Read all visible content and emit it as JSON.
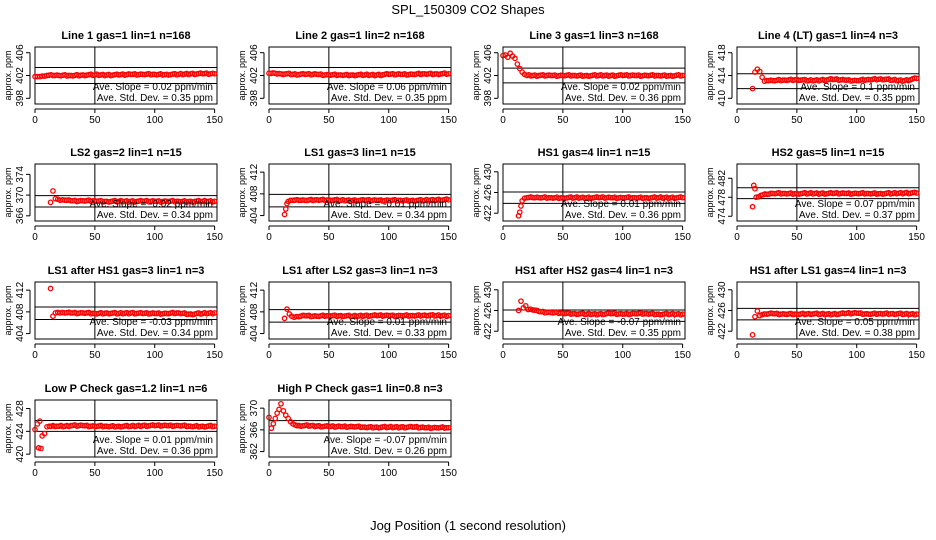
{
  "figure": {
    "title": "SPL_150309  CO2 Shapes",
    "xlabel": "Jog Position (1 second resolution)",
    "point_color": "#ff0000",
    "point_marker": "open circle",
    "line_color": "#000000"
  },
  "chart_data": [
    {
      "type": "scatter",
      "title": "Line 1 gas=1 lin=1 n=168",
      "ylabel": "approx. ppm",
      "xlim": [
        0,
        152
      ],
      "xticks": [
        0,
        50,
        100,
        150
      ],
      "ylim": [
        397,
        407
      ],
      "yticks": [
        398,
        402,
        406
      ],
      "hlines": [
        403.4,
        400.6
      ],
      "vline": 50,
      "x": [
        0,
        2,
        4,
        6,
        8,
        10,
        15,
        20,
        30,
        40,
        50,
        60,
        70,
        80,
        90,
        100,
        110,
        120,
        130,
        140,
        150
      ],
      "y": [
        401.8,
        401.8,
        401.8,
        401.9,
        401.9,
        402.0,
        402.0,
        402.0,
        402.0,
        402.1,
        402.1,
        402.1,
        402.1,
        402.2,
        402.2,
        402.2,
        402.2,
        402.2,
        402.3,
        402.3,
        402.3
      ],
      "notes": [
        "Ave. Slope =  0.02  ppm/min",
        "Ave. Std. Dev. =  0.35  ppm"
      ]
    },
    {
      "type": "scatter",
      "title": "Line 2 gas=1 lin=2 n=168",
      "ylabel": "approx. ppm",
      "xlim": [
        0,
        152
      ],
      "xticks": [
        0,
        50,
        100,
        150
      ],
      "ylim": [
        397,
        407
      ],
      "yticks": [
        398,
        402,
        406
      ],
      "hlines": [
        403.4,
        400.6
      ],
      "vline": 50,
      "x": [
        0,
        5,
        10,
        15,
        20,
        30,
        40,
        50,
        60,
        70,
        80,
        90,
        100,
        110,
        120,
        130,
        140,
        150
      ],
      "y": [
        402.4,
        402.4,
        402.3,
        402.3,
        402.2,
        402.2,
        402.2,
        402.1,
        402.1,
        402.1,
        402.1,
        402.1,
        402.2,
        402.2,
        402.2,
        402.3,
        402.3,
        402.3
      ],
      "notes": [
        "Ave. Slope =  0.06  ppm/min",
        "Ave. Std. Dev. =  0.35  ppm"
      ]
    },
    {
      "type": "scatter",
      "title": "Line 3 gas=1 lin=3 n=168",
      "ylabel": "approx. ppm",
      "xlim": [
        0,
        152
      ],
      "xticks": [
        0,
        50,
        100,
        150
      ],
      "ylim": [
        397,
        407
      ],
      "yticks": [
        398,
        402,
        406
      ],
      "hlines": [
        403.3,
        400.7
      ],
      "vline": 50,
      "x": [
        0,
        2,
        4,
        6,
        8,
        10,
        12,
        14,
        16,
        18,
        20,
        25,
        30,
        40,
        50,
        60,
        70,
        80,
        90,
        100,
        110,
        120,
        130,
        140,
        150
      ],
      "y": [
        405.5,
        405.6,
        405.2,
        405.9,
        405.4,
        405.0,
        404.0,
        403.2,
        402.6,
        402.2,
        402.0,
        402.0,
        402.0,
        402.0,
        402.0,
        402.0,
        402.0,
        402.0,
        402.0,
        402.0,
        402.0,
        402.0,
        402.0,
        402.0,
        402.0
      ],
      "notes": [
        "Ave. Slope =  0.02  ppm/min",
        "Ave. Std. Dev. =  0.36  ppm"
      ]
    },
    {
      "type": "scatter",
      "title": "Line 4 (LT) gas=1 lin=4 n=3",
      "ylabel": "approx. ppm",
      "xlim": [
        0,
        152
      ],
      "xticks": [
        0,
        50,
        100,
        150
      ],
      "ylim": [
        409,
        419
      ],
      "yticks": [
        410,
        414,
        418
      ],
      "hlines": [
        414.3,
        411.7
      ],
      "vline": 50,
      "x": [
        13,
        15,
        17,
        19,
        21,
        23,
        25,
        30,
        40,
        50,
        60,
        70,
        80,
        90,
        100,
        110,
        120,
        130,
        140,
        150
      ],
      "y": [
        411.7,
        414.6,
        415.1,
        414.7,
        413.7,
        413.0,
        413.1,
        413.1,
        413.2,
        413.3,
        413.1,
        413.2,
        413.3,
        413.2,
        413.1,
        413.3,
        413.4,
        413.2,
        413.1,
        413.5
      ],
      "notes": [
        "Ave. Slope =  0.1  ppm/min",
        "Ave. Std. Dev. =  0.35  ppm"
      ]
    },
    {
      "type": "scatter",
      "title": "LS2 gas=2 lin=1 n=15",
      "ylabel": "approx. ppm",
      "xlim": [
        0,
        152
      ],
      "xticks": [
        0,
        50,
        100,
        150
      ],
      "ylim": [
        365,
        376
      ],
      "yticks": [
        366,
        370,
        374
      ],
      "hlines": [
        369.9,
        367.7
      ],
      "vline": 50,
      "x": [
        13,
        15,
        17,
        19,
        21,
        25,
        30,
        40,
        50,
        60,
        70,
        80,
        90,
        100,
        110,
        120,
        130,
        140,
        150
      ],
      "y": [
        368.6,
        370.8,
        369.3,
        369.2,
        369.0,
        369.0,
        368.9,
        368.9,
        368.9,
        368.8,
        368.8,
        368.8,
        368.8,
        368.8,
        368.8,
        368.8,
        368.8,
        368.8,
        368.8
      ],
      "notes": [
        "Ave. Slope = -0.02  ppm/min",
        "Ave. Std. Dev. =  0.34  ppm"
      ]
    },
    {
      "type": "scatter",
      "title": "LS1 gas=3 lin=1 n=15",
      "ylabel": "approx. ppm",
      "xlim": [
        0,
        152
      ],
      "xticks": [
        0,
        50,
        100,
        150
      ],
      "ylim": [
        403,
        413.5
      ],
      "yticks": [
        404,
        408,
        412
      ],
      "hlines": [
        407.9,
        405.6
      ],
      "vline": 50,
      "x": [
        13,
        14,
        15,
        16,
        18,
        20,
        25,
        30,
        40,
        50,
        60,
        70,
        80,
        90,
        100,
        110,
        120,
        130,
        140,
        150
      ],
      "y": [
        404.2,
        405.2,
        406.2,
        406.6,
        406.8,
        406.8,
        406.8,
        406.8,
        406.9,
        406.9,
        406.8,
        406.8,
        406.8,
        406.8,
        406.8,
        406.8,
        406.8,
        406.8,
        406.9,
        406.9
      ],
      "notes": [
        "Ave. Slope = -0.01  ppm/min",
        "Ave. Std. Dev. =  0.34  ppm"
      ]
    },
    {
      "type": "scatter",
      "title": "HS1 gas=4 lin=1 n=15",
      "ylabel": "approx. ppm",
      "xlim": [
        0,
        152
      ],
      "xticks": [
        0,
        50,
        100,
        150
      ],
      "ylim": [
        420.5,
        431.5
      ],
      "yticks": [
        422,
        426,
        430
      ],
      "hlines": [
        426.1,
        423.9
      ],
      "vline": 50,
      "x": [
        13,
        14,
        15,
        16,
        18,
        20,
        25,
        30,
        40,
        50,
        60,
        70,
        80,
        90,
        100,
        110,
        120,
        130,
        140,
        150
      ],
      "y": [
        421.5,
        422.2,
        423.4,
        424.4,
        424.9,
        425.0,
        425.0,
        425.0,
        425.0,
        425.0,
        425.0,
        425.0,
        425.0,
        425.0,
        425.0,
        425.0,
        425.0,
        425.0,
        425.0,
        425.0
      ],
      "notes": [
        "Ave. Slope =  0.01  ppm/min",
        "Ave. Std. Dev. =  0.36  ppm"
      ]
    },
    {
      "type": "scatter",
      "title": "HS2 gas=5 lin=1 n=15",
      "ylabel": "approx. ppm",
      "xlim": [
        0,
        152
      ],
      "xticks": [
        0,
        50,
        100,
        150
      ],
      "ylim": [
        473,
        485
      ],
      "yticks": [
        474,
        478,
        482
      ],
      "hlines": [
        480.0,
        477.7
      ],
      "vline": 50,
      "x": [
        13,
        14,
        15,
        16,
        18,
        20,
        25,
        30,
        40,
        50,
        60,
        70,
        80,
        90,
        100,
        110,
        120,
        130,
        140,
        150
      ],
      "y": [
        476.0,
        480.5,
        479.8,
        478.0,
        478.1,
        478.4,
        478.6,
        478.8,
        478.8,
        478.8,
        478.8,
        478.8,
        478.8,
        478.8,
        478.8,
        478.8,
        478.8,
        478.8,
        478.9,
        478.9
      ],
      "notes": [
        "Ave. Slope =  0.07  ppm/min",
        "Ave. Std. Dev. =  0.37  ppm"
      ]
    },
    {
      "type": "scatter",
      "title": "LS1 after HS1 gas=3 lin=1 n=3",
      "ylabel": "approx. ppm",
      "xlim": [
        0,
        152
      ],
      "xticks": [
        0,
        50,
        100,
        150
      ],
      "ylim": [
        403,
        413.5
      ],
      "yticks": [
        404,
        408,
        412
      ],
      "hlines": [
        408.9,
        406.6
      ],
      "vline": 50,
      "x": [
        13,
        15,
        17,
        19,
        21,
        25,
        30,
        40,
        50,
        60,
        70,
        80,
        90,
        100,
        110,
        120,
        130,
        140,
        150
      ],
      "y": [
        412.3,
        407.2,
        407.8,
        407.9,
        407.8,
        407.8,
        407.8,
        407.8,
        407.7,
        407.8,
        407.7,
        407.8,
        407.7,
        407.7,
        407.7,
        407.8,
        407.6,
        407.7,
        407.8
      ],
      "notes": [
        "Ave. Slope = -0.03  ppm/min",
        "Ave. Std. Dev. =  0.34  ppm"
      ]
    },
    {
      "type": "scatter",
      "title": "LS1 after LS2 gas=3 lin=1 n=3",
      "ylabel": "approx. ppm",
      "xlim": [
        0,
        152
      ],
      "xticks": [
        0,
        50,
        100,
        150
      ],
      "ylim": [
        403,
        413.5
      ],
      "yticks": [
        404,
        408,
        412
      ],
      "hlines": [
        408.4,
        406.1
      ],
      "vline": 50,
      "x": [
        13,
        15,
        17,
        19,
        21,
        25,
        30,
        40,
        50,
        60,
        70,
        80,
        90,
        100,
        110,
        120,
        130,
        140,
        150
      ],
      "y": [
        406.8,
        408.5,
        407.6,
        407.2,
        407.0,
        407.1,
        407.3,
        407.2,
        407.3,
        407.3,
        407.2,
        407.3,
        407.3,
        407.3,
        407.3,
        407.3,
        407.4,
        407.3,
        407.3
      ],
      "notes": [
        "Ave. Slope =  0.01  ppm/min",
        "Ave. Std. Dev. =  0.33  ppm"
      ]
    },
    {
      "type": "scatter",
      "title": "HS1 after HS2 gas=4 lin=1 n=3",
      "ylabel": "approx. ppm",
      "xlim": [
        0,
        152
      ],
      "xticks": [
        0,
        50,
        100,
        150
      ],
      "ylim": [
        420.5,
        431.5
      ],
      "yticks": [
        422,
        426,
        430
      ],
      "hlines": [
        426.1,
        423.9
      ],
      "vline": 50,
      "x": [
        13,
        15,
        17,
        19,
        21,
        25,
        30,
        40,
        50,
        60,
        70,
        80,
        90,
        100,
        110,
        120,
        130,
        140,
        150
      ],
      "y": [
        426.0,
        427.8,
        426.5,
        426.9,
        426.2,
        426.1,
        425.8,
        425.6,
        425.5,
        425.4,
        425.3,
        425.3,
        425.4,
        425.3,
        425.4,
        425.4,
        425.3,
        425.3,
        425.3
      ],
      "notes": [
        "Ave. Slope = -0.07  ppm/min",
        "Ave. Std. Dev. =  0.35  ppm"
      ]
    },
    {
      "type": "scatter",
      "title": "HS1 after LS1 gas=4 lin=1 n=3",
      "ylabel": "approx. ppm",
      "xlim": [
        0,
        152
      ],
      "xticks": [
        0,
        50,
        100,
        150
      ],
      "ylim": [
        420.5,
        431.5
      ],
      "yticks": [
        422,
        426,
        430
      ],
      "hlines": [
        426.4,
        424.2
      ],
      "vline": 50,
      "x": [
        13,
        15,
        17,
        19,
        21,
        25,
        30,
        40,
        50,
        60,
        70,
        80,
        90,
        100,
        110,
        120,
        130,
        140,
        150
      ],
      "y": [
        421.3,
        424.8,
        425.9,
        425.0,
        425.2,
        425.3,
        425.4,
        425.3,
        425.3,
        425.4,
        425.3,
        425.3,
        425.4,
        425.5,
        425.3,
        425.4,
        425.4,
        425.3,
        425.3
      ],
      "notes": [
        "Ave. Slope =  0.05  ppm/min",
        "Ave. Std. Dev. =  0.38  ppm"
      ]
    },
    {
      "type": "scatter",
      "title": "Low P Check gas=1.2 lin=1 n=6",
      "ylabel": "approx. ppm",
      "xlim": [
        0,
        152
      ],
      "xticks": [
        0,
        50,
        100,
        150
      ],
      "ylim": [
        419.5,
        429.5
      ],
      "yticks": [
        420,
        424,
        428
      ],
      "hlines": [
        425.9,
        424.0
      ],
      "vline": 50,
      "x": [
        0,
        2,
        3,
        4,
        5,
        6,
        8,
        10,
        12,
        15,
        20,
        25,
        30,
        40,
        50,
        60,
        70,
        80,
        90,
        100,
        110,
        120,
        130,
        140,
        150
      ],
      "y": [
        424.3,
        425.3,
        421.1,
        425.8,
        421.0,
        423.2,
        423.6,
        424.8,
        424.9,
        425.0,
        424.9,
        424.9,
        425.0,
        425.0,
        424.9,
        424.9,
        424.9,
        424.9,
        425.0,
        425.0,
        425.0,
        425.0,
        424.9,
        424.9,
        424.9
      ],
      "notes": [
        "Ave. Slope =  0.01  ppm/min",
        "Ave. Std. Dev. =  0.36  ppm"
      ]
    },
    {
      "type": "scatter",
      "title": "High P Check gas=1 lin=0.8 n=3",
      "ylabel": "approx. ppm",
      "xlim": [
        0,
        152
      ],
      "xticks": [
        0,
        50,
        100,
        150
      ],
      "ylim": [
        361,
        371.5
      ],
      "yticks": [
        362,
        366,
        370
      ],
      "hlines": [
        367.7,
        365.4
      ],
      "vline": 50,
      "x": [
        0,
        2,
        10,
        12,
        14,
        16,
        18,
        20,
        22,
        25,
        30,
        40,
        50,
        60,
        70,
        80,
        90,
        100,
        110,
        120,
        130,
        140,
        150
      ],
      "y": [
        368.3,
        366.3,
        370.8,
        369.5,
        368.7,
        368.1,
        367.5,
        367.1,
        366.9,
        366.8,
        366.8,
        366.7,
        366.6,
        366.6,
        366.6,
        366.5,
        366.5,
        366.5,
        366.5,
        366.5,
        366.4,
        366.4,
        366.4
      ],
      "notes": [
        "Ave. Slope = -0.07  ppm/min",
        "Ave. Std. Dev. =  0.26  ppm"
      ]
    }
  ]
}
